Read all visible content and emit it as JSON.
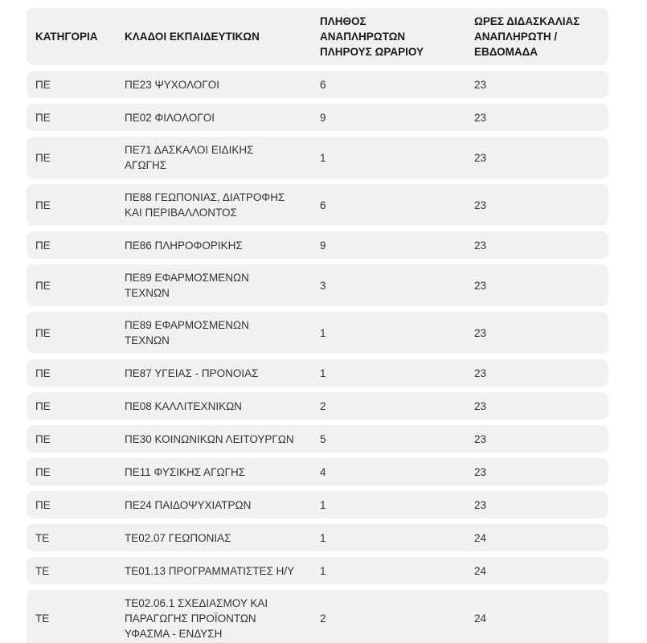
{
  "table": {
    "columns": [
      "ΚΑΤΗΓΟΡΙΑ",
      "ΚΛΑΔΟΙ ΕΚΠΑΙΔΕΥΤΙΚΩΝ",
      "ΠΛΗΘΟΣ ΑΝΑΠΛΗΡΩΤΩΝ ΠΛΗΡΟΥΣ ΩΡΑΡΙΟΥ",
      "ΩΡΕΣ ΔΙΔΑΣΚΑΛΙΑΣ ΑΝΑΠΛΗΡΩΤΗ / ΕΒΔΟΜΑΔΑ"
    ],
    "rows": [
      {
        "category": "ΠΕ",
        "branch": "ΠΕ23 ΨΥΧΟΛΟΓΟΙ",
        "count": "6",
        "hours": "23"
      },
      {
        "category": "ΠΕ",
        "branch": "ΠΕ02 ΦΙΛΟΛΟΓΟΙ",
        "count": "9",
        "hours": "23"
      },
      {
        "category": "ΠΕ",
        "branch": "ΠΕ71 ΔΑΣΚΑΛΟΙ ΕΙΔΙΚΗΣ ΑΓΩΓΗΣ",
        "count": "1",
        "hours": "23"
      },
      {
        "category": "ΠΕ",
        "branch": "ΠΕ88 ΓΕΩΠΟΝΙΑΣ, ΔΙΑΤΡΟΦΗΣ ΚΑΙ ΠΕΡΙΒΑΛΛΟΝΤΟΣ",
        "count": "6",
        "hours": "23"
      },
      {
        "category": "ΠΕ",
        "branch": "ΠΕ86 ΠΛΗΡΟΦΟΡΙΚΗΣ",
        "count": "9",
        "hours": "23"
      },
      {
        "category": "ΠΕ",
        "branch": "ΠΕ89 ΕΦΑΡΜΟΣΜΕΝΩΝ ΤΕΧΝΩΝ",
        "count": "3",
        "hours": "23"
      },
      {
        "category": "ΠΕ",
        "branch": "ΠΕ89 ΕΦΑΡΜΟΣΜΕΝΩΝ ΤΕΧΝΩΝ",
        "count": "1",
        "hours": "23"
      },
      {
        "category": "ΠΕ",
        "branch": "ΠΕ87 ΥΓΕΙΑΣ - ΠΡΟΝΟΙΑΣ",
        "count": "1",
        "hours": "23"
      },
      {
        "category": "ΠΕ",
        "branch": "ΠΕ08 ΚΑΛΛΙΤΕΧΝΙΚΩΝ",
        "count": "2",
        "hours": "23"
      },
      {
        "category": "ΠΕ",
        "branch": "ΠΕ30 ΚΟΙΝΩΝΙΚΩΝ ΛΕΙΤΟΥΡΓΩΝ",
        "count": "5",
        "hours": "23"
      },
      {
        "category": "ΠΕ",
        "branch": "ΠΕ11 ΦΥΣΙΚΗΣ ΑΓΩΓΗΣ",
        "count": "4",
        "hours": "23"
      },
      {
        "category": "ΠΕ",
        "branch": "ΠΕ24 ΠΑΙΔΟΨΥΧΙΑΤΡΩΝ",
        "count": "1",
        "hours": "23"
      },
      {
        "category": "ΤΕ",
        "branch": "ΤΕ02.07 ΓΕΩΠΟΝΙΑΣ",
        "count": "1",
        "hours": "24"
      },
      {
        "category": "ΤΕ",
        "branch": "ΤΕ01.13 ΠΡΟΓΡΑΜΜΑΤΙΣΤΕΣ Η/Υ",
        "count": "1",
        "hours": "24"
      },
      {
        "category": "ΤΕ",
        "branch": "ΤΕ02.06.1 ΣΧΕΔΙΑΣΜΟΥ ΚΑΙ ΠΑΡΑΓΩΓΗΣ ΠΡΟΪΟΝΤΩΝ ΥΦΑΣΜΑ - ΕΝΔΥΣΗ",
        "count": "2",
        "hours": "24"
      }
    ],
    "colors": {
      "row_background": "#f1f1f1",
      "header_text": "#1a1a1a",
      "cell_text": "#333333",
      "page_background": "#ffffff"
    }
  }
}
